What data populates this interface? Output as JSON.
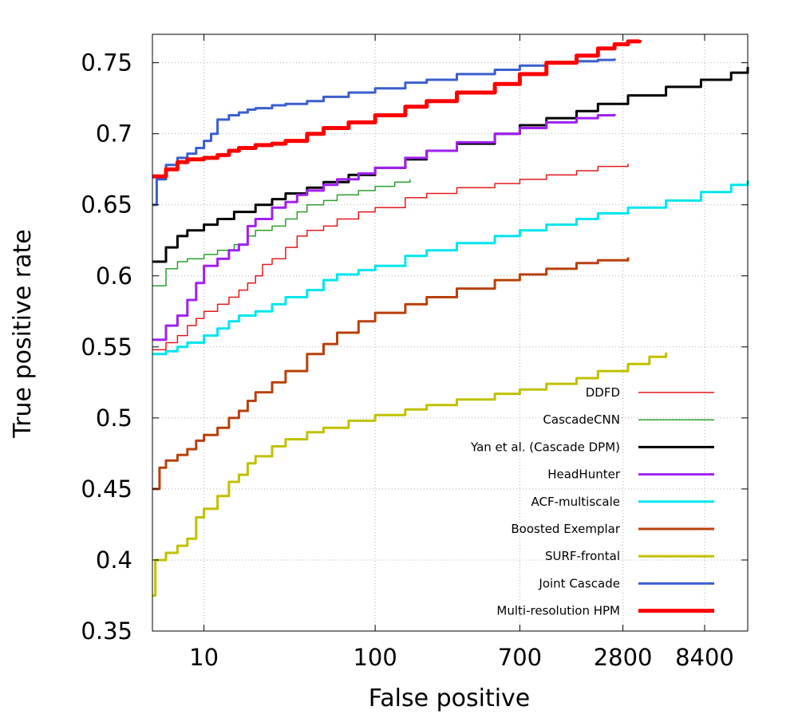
{
  "chart_data": {
    "type": "line",
    "title": "",
    "xlabel": "False positive",
    "ylabel": "True positive rate",
    "xscale": "log",
    "xlim": [
      5,
      15000
    ],
    "ylim": [
      0.35,
      0.77
    ],
    "xticks": [
      10,
      100,
      700,
      2800,
      8400
    ],
    "xtick_labels": [
      "10",
      "100",
      "700",
      "2800",
      "8400"
    ],
    "yticks": [
      0.35,
      0.4,
      0.45,
      0.5,
      0.55,
      0.6,
      0.65,
      0.7,
      0.75
    ],
    "ytick_labels": [
      "0.35",
      "0.4",
      "0.45",
      "0.5",
      "0.55",
      "0.6",
      "0.65",
      "0.7",
      "0.75"
    ],
    "grid": true,
    "legend_position": "bottom-right",
    "series": [
      {
        "name": "DDFD",
        "color": "#e31a1c",
        "width": 1.5,
        "x": [
          5,
          6,
          7,
          8,
          9,
          10,
          12,
          14,
          16,
          18,
          20,
          22,
          25,
          30,
          35,
          40,
          50,
          60,
          80,
          100,
          150,
          200,
          300,
          500,
          700,
          1000,
          1500,
          2000,
          3000
        ],
        "y": [
          0.548,
          0.553,
          0.558,
          0.565,
          0.57,
          0.575,
          0.58,
          0.585,
          0.59,
          0.595,
          0.6,
          0.608,
          0.612,
          0.62,
          0.628,
          0.632,
          0.635,
          0.64,
          0.645,
          0.648,
          0.655,
          0.658,
          0.662,
          0.665,
          0.668,
          0.671,
          0.674,
          0.677,
          0.679
        ]
      },
      {
        "name": "CascadeCNN",
        "color": "#2ca02c",
        "width": 1.5,
        "x": [
          5,
          6,
          7,
          8,
          10,
          12,
          15,
          18,
          20,
          25,
          30,
          35,
          40,
          50,
          60,
          80,
          100,
          130,
          160
        ],
        "y": [
          0.593,
          0.605,
          0.61,
          0.612,
          0.615,
          0.618,
          0.622,
          0.628,
          0.632,
          0.635,
          0.64,
          0.645,
          0.65,
          0.653,
          0.657,
          0.66,
          0.663,
          0.666,
          0.668
        ]
      },
      {
        "name": "Yan et al. (Cascade DPM)",
        "color": "#000000",
        "width": 3,
        "x": [
          5,
          6,
          7,
          8,
          10,
          12,
          15,
          20,
          25,
          30,
          40,
          50,
          70,
          100,
          150,
          200,
          300,
          500,
          700,
          1000,
          1500,
          2000,
          3000,
          5000,
          8000,
          12000,
          15000
        ],
        "y": [
          0.61,
          0.62,
          0.628,
          0.632,
          0.636,
          0.64,
          0.645,
          0.65,
          0.654,
          0.658,
          0.662,
          0.666,
          0.671,
          0.676,
          0.682,
          0.688,
          0.693,
          0.7,
          0.706,
          0.711,
          0.716,
          0.721,
          0.727,
          0.733,
          0.738,
          0.743,
          0.747
        ]
      },
      {
        "name": "HeadHunter",
        "color": "#a020f0",
        "width": 3,
        "x": [
          5,
          6,
          7,
          8,
          9,
          10,
          12,
          14,
          16,
          18,
          20,
          25,
          30,
          35,
          40,
          50,
          60,
          80,
          100,
          150,
          200,
          300,
          500,
          700,
          1000,
          1500,
          2000,
          2500
        ],
        "y": [
          0.555,
          0.565,
          0.572,
          0.583,
          0.595,
          0.607,
          0.612,
          0.618,
          0.622,
          0.635,
          0.64,
          0.648,
          0.652,
          0.657,
          0.66,
          0.664,
          0.668,
          0.672,
          0.676,
          0.683,
          0.688,
          0.694,
          0.7,
          0.704,
          0.708,
          0.711,
          0.713,
          0.714
        ]
      },
      {
        "name": "ACF-multiscale",
        "color": "#00e5ee",
        "width": 3,
        "x": [
          5,
          6,
          7,
          8,
          10,
          12,
          14,
          16,
          20,
          25,
          30,
          40,
          50,
          60,
          80,
          100,
          150,
          200,
          300,
          500,
          700,
          1000,
          1500,
          2000,
          3000,
          5000,
          8000,
          12000,
          15000
        ],
        "y": [
          0.545,
          0.547,
          0.55,
          0.553,
          0.558,
          0.563,
          0.568,
          0.572,
          0.575,
          0.58,
          0.585,
          0.59,
          0.597,
          0.601,
          0.604,
          0.607,
          0.614,
          0.618,
          0.623,
          0.628,
          0.632,
          0.636,
          0.64,
          0.644,
          0.648,
          0.653,
          0.659,
          0.664,
          0.667
        ]
      },
      {
        "name": "Boosted Exemplar",
        "color": "#b8400a",
        "width": 3,
        "x": [
          5,
          5.5,
          6,
          7,
          8,
          9,
          10,
          12,
          14,
          16,
          18,
          20,
          25,
          30,
          40,
          50,
          60,
          80,
          100,
          150,
          200,
          300,
          500,
          700,
          1000,
          1500,
          2000,
          3000
        ],
        "y": [
          0.45,
          0.465,
          0.47,
          0.474,
          0.478,
          0.484,
          0.488,
          0.493,
          0.5,
          0.505,
          0.512,
          0.518,
          0.525,
          0.533,
          0.545,
          0.552,
          0.56,
          0.568,
          0.574,
          0.58,
          0.585,
          0.591,
          0.597,
          0.601,
          0.605,
          0.609,
          0.611,
          0.613
        ]
      },
      {
        "name": "SURF-frontal",
        "color": "#c0c000",
        "width": 3,
        "x": [
          5,
          5.2,
          6,
          7,
          8,
          9,
          10,
          12,
          14,
          16,
          18,
          20,
          25,
          30,
          40,
          50,
          70,
          100,
          150,
          200,
          300,
          500,
          700,
          1000,
          1500,
          2000,
          3000,
          4000,
          5000
        ],
        "y": [
          0.375,
          0.4,
          0.405,
          0.41,
          0.415,
          0.43,
          0.436,
          0.445,
          0.455,
          0.46,
          0.468,
          0.473,
          0.48,
          0.485,
          0.49,
          0.493,
          0.498,
          0.502,
          0.506,
          0.509,
          0.513,
          0.517,
          0.52,
          0.524,
          0.528,
          0.533,
          0.538,
          0.543,
          0.546
        ]
      },
      {
        "name": "Joint Cascade",
        "color": "#3a5fcd",
        "width": 3,
        "x": [
          5,
          5.3,
          6,
          7,
          8,
          9,
          10,
          11,
          12,
          14,
          16,
          18,
          20,
          25,
          30,
          40,
          50,
          70,
          100,
          150,
          200,
          300,
          500,
          700,
          1000,
          1500,
          2000,
          2500
        ],
        "y": [
          0.65,
          0.668,
          0.678,
          0.683,
          0.686,
          0.69,
          0.695,
          0.7,
          0.71,
          0.713,
          0.715,
          0.717,
          0.718,
          0.72,
          0.721,
          0.723,
          0.726,
          0.729,
          0.732,
          0.736,
          0.738,
          0.742,
          0.745,
          0.748,
          0.75,
          0.751,
          0.752,
          0.753
        ]
      },
      {
        "name": "Multi-resolution HPM",
        "color": "#ff0000",
        "width": 5,
        "x": [
          5,
          6,
          7,
          8,
          10,
          12,
          14,
          16,
          20,
          25,
          30,
          40,
          50,
          70,
          100,
          150,
          200,
          300,
          500,
          700,
          1000,
          1500,
          2000,
          2500,
          3000,
          3500
        ],
        "y": [
          0.67,
          0.675,
          0.68,
          0.682,
          0.683,
          0.685,
          0.688,
          0.69,
          0.692,
          0.693,
          0.695,
          0.7,
          0.704,
          0.708,
          0.713,
          0.719,
          0.723,
          0.729,
          0.735,
          0.742,
          0.75,
          0.755,
          0.76,
          0.763,
          0.765,
          0.766
        ]
      }
    ]
  }
}
